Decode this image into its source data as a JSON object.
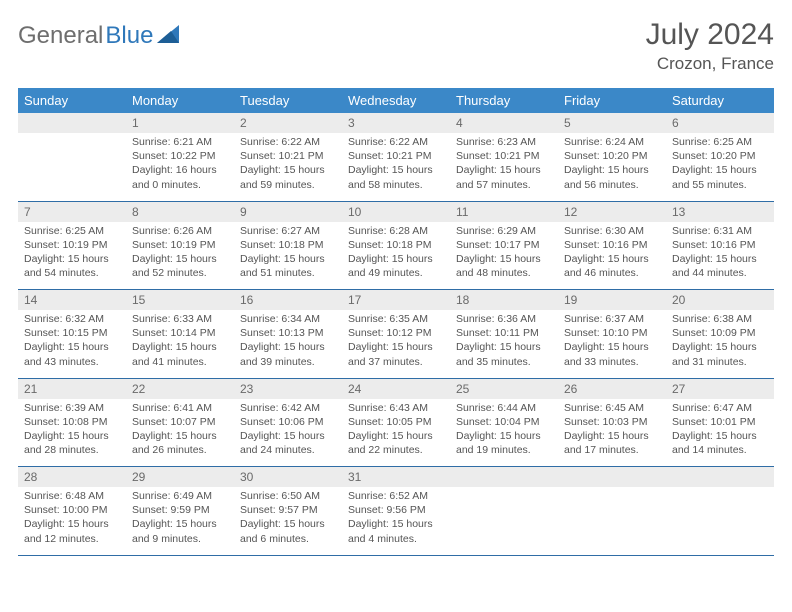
{
  "logo": {
    "text1": "General",
    "text2": "Blue"
  },
  "title": "July 2024",
  "location": "Crozon, France",
  "colors": {
    "header_bg": "#3b88c8",
    "daynum_bg": "#ececec",
    "row_border": "#2f6da6",
    "text": "#555555",
    "logo_gray": "#6e6e6e",
    "logo_blue": "#2f78ba"
  },
  "daysOfWeek": [
    "Sunday",
    "Monday",
    "Tuesday",
    "Wednesday",
    "Thursday",
    "Friday",
    "Saturday"
  ],
  "weeks": [
    {
      "nums": [
        "",
        "1",
        "2",
        "3",
        "4",
        "5",
        "6"
      ],
      "cells": [
        {
          "empty": true
        },
        {
          "sunrise": "Sunrise: 6:21 AM",
          "sunset": "Sunset: 10:22 PM",
          "daylight": "Daylight: 16 hours and 0 minutes."
        },
        {
          "sunrise": "Sunrise: 6:22 AM",
          "sunset": "Sunset: 10:21 PM",
          "daylight": "Daylight: 15 hours and 59 minutes."
        },
        {
          "sunrise": "Sunrise: 6:22 AM",
          "sunset": "Sunset: 10:21 PM",
          "daylight": "Daylight: 15 hours and 58 minutes."
        },
        {
          "sunrise": "Sunrise: 6:23 AM",
          "sunset": "Sunset: 10:21 PM",
          "daylight": "Daylight: 15 hours and 57 minutes."
        },
        {
          "sunrise": "Sunrise: 6:24 AM",
          "sunset": "Sunset: 10:20 PM",
          "daylight": "Daylight: 15 hours and 56 minutes."
        },
        {
          "sunrise": "Sunrise: 6:25 AM",
          "sunset": "Sunset: 10:20 PM",
          "daylight": "Daylight: 15 hours and 55 minutes."
        }
      ]
    },
    {
      "nums": [
        "7",
        "8",
        "9",
        "10",
        "11",
        "12",
        "13"
      ],
      "cells": [
        {
          "sunrise": "Sunrise: 6:25 AM",
          "sunset": "Sunset: 10:19 PM",
          "daylight": "Daylight: 15 hours and 54 minutes."
        },
        {
          "sunrise": "Sunrise: 6:26 AM",
          "sunset": "Sunset: 10:19 PM",
          "daylight": "Daylight: 15 hours and 52 minutes."
        },
        {
          "sunrise": "Sunrise: 6:27 AM",
          "sunset": "Sunset: 10:18 PM",
          "daylight": "Daylight: 15 hours and 51 minutes."
        },
        {
          "sunrise": "Sunrise: 6:28 AM",
          "sunset": "Sunset: 10:18 PM",
          "daylight": "Daylight: 15 hours and 49 minutes."
        },
        {
          "sunrise": "Sunrise: 6:29 AM",
          "sunset": "Sunset: 10:17 PM",
          "daylight": "Daylight: 15 hours and 48 minutes."
        },
        {
          "sunrise": "Sunrise: 6:30 AM",
          "sunset": "Sunset: 10:16 PM",
          "daylight": "Daylight: 15 hours and 46 minutes."
        },
        {
          "sunrise": "Sunrise: 6:31 AM",
          "sunset": "Sunset: 10:16 PM",
          "daylight": "Daylight: 15 hours and 44 minutes."
        }
      ]
    },
    {
      "nums": [
        "14",
        "15",
        "16",
        "17",
        "18",
        "19",
        "20"
      ],
      "cells": [
        {
          "sunrise": "Sunrise: 6:32 AM",
          "sunset": "Sunset: 10:15 PM",
          "daylight": "Daylight: 15 hours and 43 minutes."
        },
        {
          "sunrise": "Sunrise: 6:33 AM",
          "sunset": "Sunset: 10:14 PM",
          "daylight": "Daylight: 15 hours and 41 minutes."
        },
        {
          "sunrise": "Sunrise: 6:34 AM",
          "sunset": "Sunset: 10:13 PM",
          "daylight": "Daylight: 15 hours and 39 minutes."
        },
        {
          "sunrise": "Sunrise: 6:35 AM",
          "sunset": "Sunset: 10:12 PM",
          "daylight": "Daylight: 15 hours and 37 minutes."
        },
        {
          "sunrise": "Sunrise: 6:36 AM",
          "sunset": "Sunset: 10:11 PM",
          "daylight": "Daylight: 15 hours and 35 minutes."
        },
        {
          "sunrise": "Sunrise: 6:37 AM",
          "sunset": "Sunset: 10:10 PM",
          "daylight": "Daylight: 15 hours and 33 minutes."
        },
        {
          "sunrise": "Sunrise: 6:38 AM",
          "sunset": "Sunset: 10:09 PM",
          "daylight": "Daylight: 15 hours and 31 minutes."
        }
      ]
    },
    {
      "nums": [
        "21",
        "22",
        "23",
        "24",
        "25",
        "26",
        "27"
      ],
      "cells": [
        {
          "sunrise": "Sunrise: 6:39 AM",
          "sunset": "Sunset: 10:08 PM",
          "daylight": "Daylight: 15 hours and 28 minutes."
        },
        {
          "sunrise": "Sunrise: 6:41 AM",
          "sunset": "Sunset: 10:07 PM",
          "daylight": "Daylight: 15 hours and 26 minutes."
        },
        {
          "sunrise": "Sunrise: 6:42 AM",
          "sunset": "Sunset: 10:06 PM",
          "daylight": "Daylight: 15 hours and 24 minutes."
        },
        {
          "sunrise": "Sunrise: 6:43 AM",
          "sunset": "Sunset: 10:05 PM",
          "daylight": "Daylight: 15 hours and 22 minutes."
        },
        {
          "sunrise": "Sunrise: 6:44 AM",
          "sunset": "Sunset: 10:04 PM",
          "daylight": "Daylight: 15 hours and 19 minutes."
        },
        {
          "sunrise": "Sunrise: 6:45 AM",
          "sunset": "Sunset: 10:03 PM",
          "daylight": "Daylight: 15 hours and 17 minutes."
        },
        {
          "sunrise": "Sunrise: 6:47 AM",
          "sunset": "Sunset: 10:01 PM",
          "daylight": "Daylight: 15 hours and 14 minutes."
        }
      ]
    },
    {
      "nums": [
        "28",
        "29",
        "30",
        "31",
        "",
        "",
        ""
      ],
      "cells": [
        {
          "sunrise": "Sunrise: 6:48 AM",
          "sunset": "Sunset: 10:00 PM",
          "daylight": "Daylight: 15 hours and 12 minutes."
        },
        {
          "sunrise": "Sunrise: 6:49 AM",
          "sunset": "Sunset: 9:59 PM",
          "daylight": "Daylight: 15 hours and 9 minutes."
        },
        {
          "sunrise": "Sunrise: 6:50 AM",
          "sunset": "Sunset: 9:57 PM",
          "daylight": "Daylight: 15 hours and 6 minutes."
        },
        {
          "sunrise": "Sunrise: 6:52 AM",
          "sunset": "Sunset: 9:56 PM",
          "daylight": "Daylight: 15 hours and 4 minutes."
        },
        {
          "empty": true
        },
        {
          "empty": true
        },
        {
          "empty": true
        }
      ]
    }
  ]
}
